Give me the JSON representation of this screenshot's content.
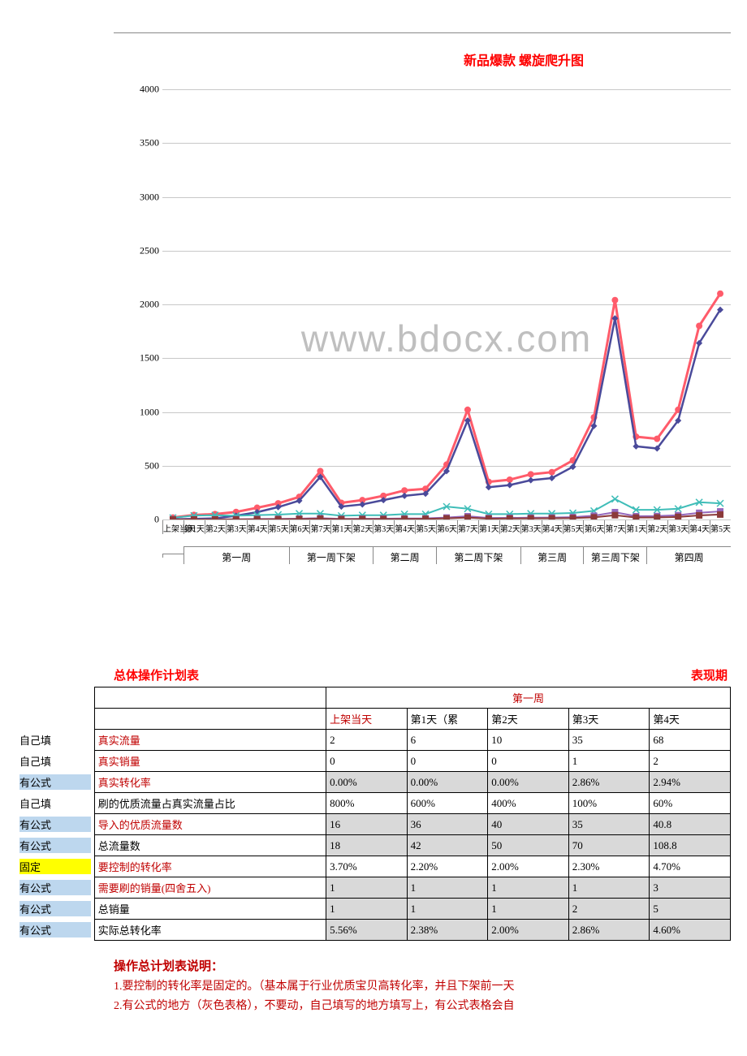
{
  "chart": {
    "title": "新品爆款 螺旋爬升图",
    "watermark": "www.bdocx.com",
    "y": {
      "min": 0,
      "max": 4000,
      "step": 500,
      "grid_color": "#c8c8c8",
      "axis_color": "#888888"
    },
    "x_labels": [
      "上架当天",
      "第1天",
      "第2天",
      "第3天",
      "第4天",
      "第5天",
      "第6天",
      "第7天",
      "第1天",
      "第2天",
      "第3天",
      "第4天",
      "第5天",
      "第6天",
      "第7天",
      "第1天",
      "第2天",
      "第3天",
      "第4天",
      "第5天",
      "第6天",
      "第7天",
      "第1天",
      "第2天",
      "第3天",
      "第4天",
      "第5天"
    ],
    "x_groups": [
      {
        "label": "",
        "span": 1
      },
      {
        "label": "第一周",
        "span": 5
      },
      {
        "label": "第一周下架",
        "span": 4
      },
      {
        "label": "第二周",
        "span": 3
      },
      {
        "label": "第二周下架",
        "span": 4
      },
      {
        "label": "第三周",
        "span": 3
      },
      {
        "label": "第三周下架",
        "span": 3
      },
      {
        "label": "第四周",
        "span": 4
      }
    ],
    "series": [
      {
        "name": "red",
        "color": "#ff5b6a",
        "marker": "circle",
        "marker_size": 4,
        "line_width": 3,
        "data": [
          18,
          42,
          50,
          70,
          109,
          150,
          210,
          450,
          155,
          180,
          220,
          270,
          285,
          510,
          1020,
          350,
          370,
          420,
          440,
          550,
          950,
          2040,
          770,
          750,
          1020,
          1800,
          2100
        ]
      },
      {
        "name": "navy",
        "color": "#4a4a9a",
        "marker": "diamond",
        "marker_size": 4,
        "line_width": 2.5,
        "data": [
          2,
          6,
          10,
          35,
          68,
          115,
          175,
          395,
          120,
          140,
          180,
          220,
          240,
          450,
          920,
          300,
          320,
          365,
          385,
          490,
          870,
          1870,
          680,
          660,
          920,
          1640,
          1950
        ]
      },
      {
        "name": "teal",
        "color": "#3fbdb8",
        "marker": "x",
        "marker_size": 4,
        "line_width": 2,
        "data": [
          16,
          36,
          40,
          35,
          41,
          45,
          55,
          55,
          35,
          40,
          40,
          50,
          50,
          120,
          100,
          50,
          50,
          55,
          55,
          60,
          80,
          190,
          90,
          90,
          100,
          160,
          150
        ]
      },
      {
        "name": "purple_sq",
        "color": "#9467bd",
        "marker": "square",
        "marker_size": 4,
        "line_width": 2,
        "data": [
          1,
          1,
          1,
          2,
          5,
          6,
          8,
          12,
          6,
          7,
          8,
          9,
          10,
          18,
          30,
          14,
          15,
          17,
          18,
          22,
          35,
          68,
          30,
          32,
          40,
          62,
          75
        ]
      },
      {
        "name": "maroon",
        "color": "#8b3a3a",
        "marker": "square",
        "marker_size": 4,
        "line_width": 2,
        "data": [
          0,
          0,
          0,
          1,
          2,
          3,
          4,
          7,
          3,
          4,
          4,
          5,
          6,
          10,
          18,
          8,
          9,
          10,
          11,
          13,
          20,
          40,
          18,
          19,
          24,
          38,
          46
        ]
      }
    ]
  },
  "table": {
    "title": "总体操作计划表",
    "period": "表现期",
    "week_header": "第一周",
    "day_headers": [
      "上架当天",
      "第1天（累",
      "第2天",
      "第3天",
      "第4天"
    ],
    "tag_text": {
      "self": "自己填",
      "formula": "有公式",
      "fixed": "固定"
    },
    "rows": [
      {
        "tag": "self",
        "label": "真实流量",
        "label_red": true,
        "vals": [
          "2",
          "6",
          "10",
          "35",
          "68"
        ],
        "shade": false
      },
      {
        "tag": "self",
        "label": "真实销量",
        "label_red": true,
        "vals": [
          "0",
          "0",
          "0",
          "1",
          "2"
        ],
        "shade": false
      },
      {
        "tag": "formula",
        "label": "真实转化率",
        "label_red": true,
        "vals": [
          "0.00%",
          "0.00%",
          "0.00%",
          "2.86%",
          "2.94%"
        ],
        "shade": true
      },
      {
        "tag": "self",
        "label": "刷的优质流量占真实流量占比",
        "label_red": false,
        "vals": [
          "800%",
          "600%",
          "400%",
          "100%",
          "60%"
        ],
        "shade": false
      },
      {
        "tag": "formula",
        "label": "导入的优质流量数",
        "label_red": true,
        "vals": [
          "16",
          "36",
          "40",
          "35",
          "40.8"
        ],
        "shade": true
      },
      {
        "tag": "formula",
        "label": "总流量数",
        "label_red": false,
        "vals": [
          "18",
          "42",
          "50",
          "70",
          "108.8"
        ],
        "shade": true
      },
      {
        "tag": "fixed",
        "label": "要控制的转化率",
        "label_red": true,
        "vals": [
          "3.70%",
          "2.20%",
          "2.00%",
          "2.30%",
          "4.70%"
        ],
        "shade": false
      },
      {
        "tag": "formula",
        "label": "需要刷的销量(四舍五入)",
        "label_red": true,
        "vals": [
          "1",
          "1",
          "1",
          "1",
          "3"
        ],
        "shade": true
      },
      {
        "tag": "formula",
        "label": "总销量",
        "label_red": false,
        "vals": [
          "1",
          "1",
          "1",
          "2",
          "5"
        ],
        "shade": true
      },
      {
        "tag": "formula",
        "label": "实际总转化率",
        "label_red": false,
        "vals": [
          "5.56%",
          "2.38%",
          "2.00%",
          "2.86%",
          "4.60%"
        ],
        "shade": true
      }
    ]
  },
  "notes": {
    "title": "操作总计划表说明：",
    "lines": [
      "1.要控制的转化率是固定的。（基本属于行业优质宝贝高转化率，并且下架前一天",
      "2.有公式的地方（灰色表格），不要动，自己填写的地方填写上，有公式表格会自"
    ]
  }
}
